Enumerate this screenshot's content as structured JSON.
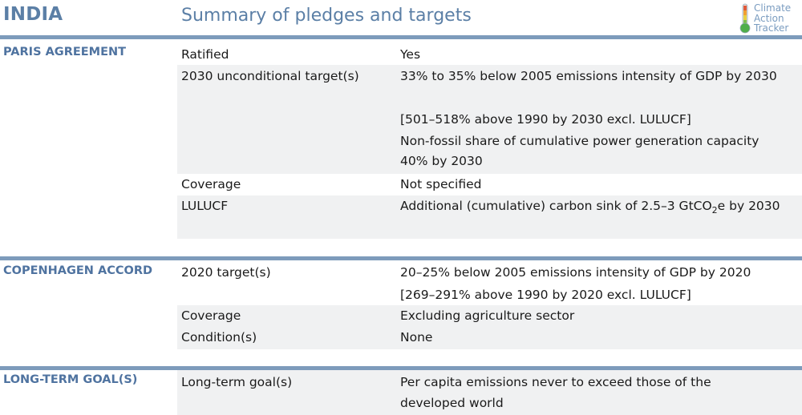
{
  "header": {
    "country": "INDIA",
    "title": "Summary of pledges and targets",
    "logo_lines": [
      "Climate",
      "Action",
      "Tracker"
    ],
    "accent_color": "#5b7fa6",
    "bar_color": "#7d9bbb"
  },
  "paris": {
    "label": "PARIS AGREEMENT",
    "rows": [
      {
        "key": "Ratified",
        "value": "Yes"
      },
      {
        "key": "2030 unconditional target(s)",
        "value_lines": [
          "33% to 35% below 2005 emissions intensity of GDP by 2030",
          "[501–518% above 1990 by 2030 excl. LULUCF]",
          "Non-fossil share of cumulative power generation capacity",
          "40% by 2030"
        ]
      },
      {
        "key": "Coverage",
        "value": "Not specified"
      },
      {
        "key": "LULUCF",
        "value_pre": "Additional (cumulative) carbon sink of 2.5–3 GtCO",
        "value_sub": "2",
        "value_post": "e by 2030"
      }
    ]
  },
  "copenhagen": {
    "label": "COPENHAGEN ACCORD",
    "rows": [
      {
        "key": "2020 target(s)",
        "value_lines": [
          "20–25% below 2005 emissions intensity of GDP by 2020",
          "[269–291% above 1990 by 2020 excl. LULUCF]"
        ]
      },
      {
        "key": "Coverage",
        "value": "Excluding agriculture sector"
      },
      {
        "key": "Condition(s)",
        "value": "None"
      }
    ]
  },
  "longterm": {
    "label": "LONG-TERM GOAL(S)",
    "rows": [
      {
        "key": "Long-term goal(s)",
        "value_lines": [
          "Per capita emissions never to exceed those of the",
          "developed world"
        ]
      }
    ]
  }
}
